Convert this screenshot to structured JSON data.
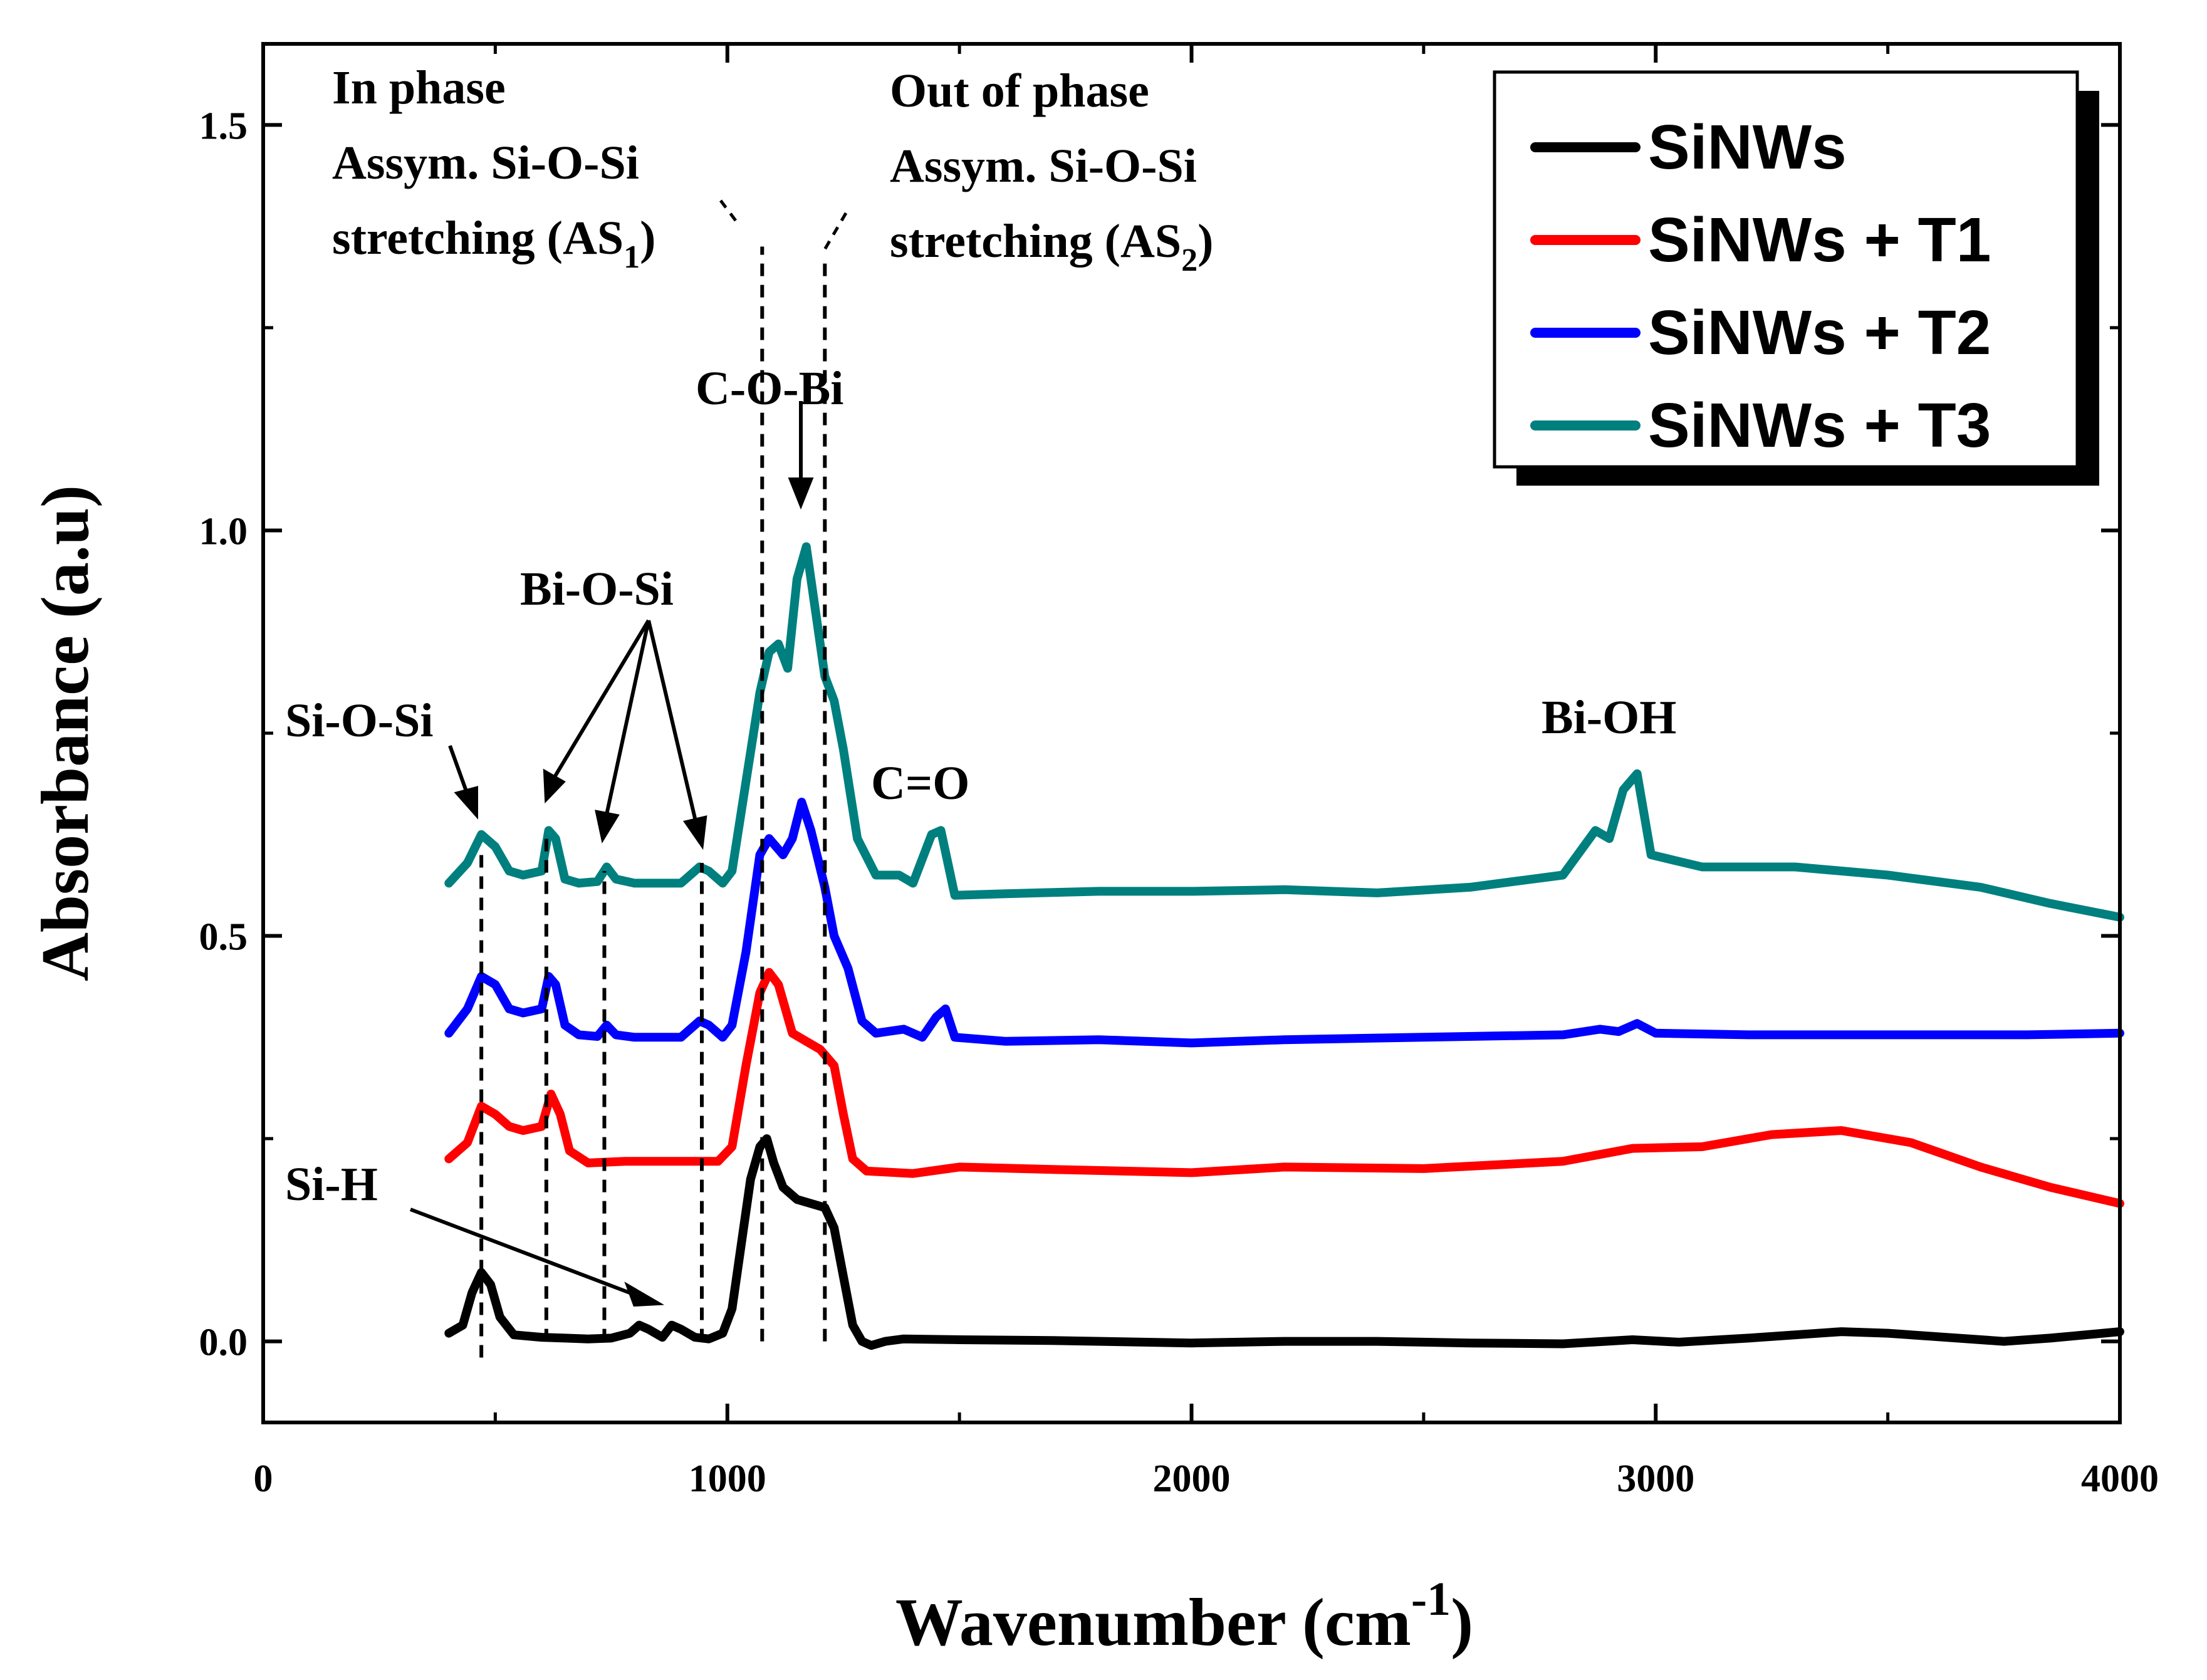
{
  "chart_data": {
    "type": "line",
    "xlabel": "Wavenumber (cm",
    "xlabel_sup": "-1",
    "xlabel_end": ")",
    "ylabel": "Absorbance (a.u)",
    "xlim": [
      0,
      4000
    ],
    "ylim": [
      -0.1,
      1.6
    ],
    "x_ticks": [
      0,
      1000,
      2000,
      3000,
      4000
    ],
    "x_tick_labels": [
      "0",
      "1000",
      "2000",
      "3000",
      "4000"
    ],
    "y_ticks": [
      0.0,
      0.5,
      1.0,
      1.5
    ],
    "y_tick_labels": [
      "0.0",
      "0.5",
      "1.0",
      "1.5"
    ],
    "legend_position": "top-right",
    "series": [
      {
        "name": "SiNWs",
        "color": "#000000",
        "points": [
          [
            400,
            0.01
          ],
          [
            430,
            0.02
          ],
          [
            450,
            0.06
          ],
          [
            470,
            0.085
          ],
          [
            490,
            0.07
          ],
          [
            510,
            0.03
          ],
          [
            540,
            0.008
          ],
          [
            600,
            0.005
          ],
          [
            650,
            0.004
          ],
          [
            700,
            0.003
          ],
          [
            750,
            0.004
          ],
          [
            790,
            0.01
          ],
          [
            810,
            0.02
          ],
          [
            830,
            0.015
          ],
          [
            860,
            0.005
          ],
          [
            880,
            0.02
          ],
          [
            900,
            0.015
          ],
          [
            930,
            0.005
          ],
          [
            960,
            0.003
          ],
          [
            990,
            0.01
          ],
          [
            1010,
            0.04
          ],
          [
            1030,
            0.12
          ],
          [
            1050,
            0.2
          ],
          [
            1070,
            0.24
          ],
          [
            1085,
            0.25
          ],
          [
            1100,
            0.22
          ],
          [
            1120,
            0.19
          ],
          [
            1150,
            0.175
          ],
          [
            1180,
            0.17
          ],
          [
            1210,
            0.165
          ],
          [
            1230,
            0.14
          ],
          [
            1250,
            0.08
          ],
          [
            1270,
            0.02
          ],
          [
            1290,
            0.0
          ],
          [
            1310,
            -0.005
          ],
          [
            1340,
            0.0
          ],
          [
            1380,
            0.003
          ],
          [
            1500,
            0.002
          ],
          [
            1700,
            0.001
          ],
          [
            2000,
            -0.002
          ],
          [
            2200,
            0.0
          ],
          [
            2400,
            0.0
          ],
          [
            2600,
            -0.002
          ],
          [
            2800,
            -0.003
          ],
          [
            2950,
            0.002
          ],
          [
            3050,
            -0.001
          ],
          [
            3200,
            0.004
          ],
          [
            3400,
            0.012
          ],
          [
            3500,
            0.01
          ],
          [
            3600,
            0.006
          ],
          [
            3750,
            0.0
          ],
          [
            3850,
            0.004
          ],
          [
            4000,
            0.012
          ]
        ]
      },
      {
        "name": "SiNWs + T1",
        "color": "#ff0000",
        "points": [
          [
            400,
            0.225
          ],
          [
            440,
            0.245
          ],
          [
            470,
            0.29
          ],
          [
            500,
            0.28
          ],
          [
            530,
            0.265
          ],
          [
            560,
            0.26
          ],
          [
            600,
            0.265
          ],
          [
            620,
            0.305
          ],
          [
            640,
            0.28
          ],
          [
            660,
            0.235
          ],
          [
            700,
            0.22
          ],
          [
            780,
            0.222
          ],
          [
            900,
            0.222
          ],
          [
            980,
            0.222
          ],
          [
            1010,
            0.24
          ],
          [
            1040,
            0.34
          ],
          [
            1070,
            0.43
          ],
          [
            1090,
            0.455
          ],
          [
            1110,
            0.44
          ],
          [
            1140,
            0.38
          ],
          [
            1170,
            0.37
          ],
          [
            1200,
            0.36
          ],
          [
            1230,
            0.34
          ],
          [
            1250,
            0.28
          ],
          [
            1270,
            0.225
          ],
          [
            1300,
            0.21
          ],
          [
            1400,
            0.207
          ],
          [
            1500,
            0.215
          ],
          [
            1700,
            0.212
          ],
          [
            2000,
            0.208
          ],
          [
            2200,
            0.215
          ],
          [
            2500,
            0.213
          ],
          [
            2800,
            0.222
          ],
          [
            2950,
            0.238
          ],
          [
            3100,
            0.24
          ],
          [
            3250,
            0.255
          ],
          [
            3400,
            0.26
          ],
          [
            3550,
            0.245
          ],
          [
            3700,
            0.215
          ],
          [
            3850,
            0.19
          ],
          [
            4000,
            0.17
          ]
        ]
      },
      {
        "name": "SiNWs + T2",
        "color": "#0000ff",
        "points": [
          [
            400,
            0.38
          ],
          [
            440,
            0.41
          ],
          [
            470,
            0.45
          ],
          [
            500,
            0.44
          ],
          [
            530,
            0.41
          ],
          [
            560,
            0.405
          ],
          [
            600,
            0.41
          ],
          [
            615,
            0.45
          ],
          [
            630,
            0.44
          ],
          [
            650,
            0.39
          ],
          [
            680,
            0.378
          ],
          [
            720,
            0.376
          ],
          [
            740,
            0.39
          ],
          [
            760,
            0.378
          ],
          [
            800,
            0.375
          ],
          [
            900,
            0.375
          ],
          [
            940,
            0.395
          ],
          [
            960,
            0.39
          ],
          [
            990,
            0.375
          ],
          [
            1010,
            0.39
          ],
          [
            1040,
            0.48
          ],
          [
            1070,
            0.6
          ],
          [
            1090,
            0.62
          ],
          [
            1120,
            0.6
          ],
          [
            1140,
            0.62
          ],
          [
            1160,
            0.665
          ],
          [
            1180,
            0.63
          ],
          [
            1210,
            0.56
          ],
          [
            1230,
            0.5
          ],
          [
            1260,
            0.46
          ],
          [
            1290,
            0.395
          ],
          [
            1320,
            0.38
          ],
          [
            1380,
            0.385
          ],
          [
            1420,
            0.375
          ],
          [
            1450,
            0.4
          ],
          [
            1470,
            0.41
          ],
          [
            1490,
            0.375
          ],
          [
            1600,
            0.37
          ],
          [
            1800,
            0.372
          ],
          [
            2000,
            0.368
          ],
          [
            2200,
            0.372
          ],
          [
            2500,
            0.375
          ],
          [
            2800,
            0.378
          ],
          [
            2880,
            0.385
          ],
          [
            2920,
            0.382
          ],
          [
            2960,
            0.392
          ],
          [
            3000,
            0.38
          ],
          [
            3200,
            0.378
          ],
          [
            3500,
            0.378
          ],
          [
            3800,
            0.378
          ],
          [
            4000,
            0.38
          ]
        ]
      },
      {
        "name": "SiNWs + T3",
        "color": "#007f7f",
        "points": [
          [
            400,
            0.565
          ],
          [
            440,
            0.59
          ],
          [
            470,
            0.625
          ],
          [
            500,
            0.61
          ],
          [
            530,
            0.58
          ],
          [
            560,
            0.575
          ],
          [
            600,
            0.58
          ],
          [
            615,
            0.63
          ],
          [
            630,
            0.62
          ],
          [
            650,
            0.57
          ],
          [
            680,
            0.565
          ],
          [
            720,
            0.567
          ],
          [
            740,
            0.585
          ],
          [
            760,
            0.57
          ],
          [
            800,
            0.565
          ],
          [
            900,
            0.565
          ],
          [
            940,
            0.585
          ],
          [
            960,
            0.58
          ],
          [
            990,
            0.565
          ],
          [
            1010,
            0.58
          ],
          [
            1040,
            0.69
          ],
          [
            1070,
            0.8
          ],
          [
            1090,
            0.85
          ],
          [
            1110,
            0.86
          ],
          [
            1130,
            0.83
          ],
          [
            1150,
            0.94
          ],
          [
            1170,
            0.98
          ],
          [
            1190,
            0.9
          ],
          [
            1210,
            0.82
          ],
          [
            1230,
            0.79
          ],
          [
            1250,
            0.73
          ],
          [
            1280,
            0.62
          ],
          [
            1320,
            0.575
          ],
          [
            1370,
            0.575
          ],
          [
            1400,
            0.565
          ],
          [
            1440,
            0.625
          ],
          [
            1460,
            0.63
          ],
          [
            1490,
            0.55
          ],
          [
            1600,
            0.552
          ],
          [
            1800,
            0.555
          ],
          [
            2000,
            0.555
          ],
          [
            2200,
            0.557
          ],
          [
            2400,
            0.553
          ],
          [
            2600,
            0.56
          ],
          [
            2800,
            0.575
          ],
          [
            2870,
            0.63
          ],
          [
            2900,
            0.62
          ],
          [
            2930,
            0.68
          ],
          [
            2960,
            0.7
          ],
          [
            2990,
            0.6
          ],
          [
            3100,
            0.585
          ],
          [
            3300,
            0.585
          ],
          [
            3500,
            0.575
          ],
          [
            3700,
            0.56
          ],
          [
            3850,
            0.54
          ],
          [
            4000,
            0.523
          ]
        ]
      }
    ],
    "annotations": {
      "in_phase_line1": "In phase",
      "in_phase_line2": "Assym. Si-O-Si",
      "in_phase_line3_a": "stretching (AS",
      "in_phase_line3_sub": "1",
      "in_phase_line3_b": ")",
      "out_phase_line1": "Out of phase",
      "out_phase_line2": "Assym. Si-O-Si",
      "out_phase_line3_a": "stretching (AS",
      "out_phase_line3_sub": "2",
      "out_phase_line3_b": ")",
      "c_o_bi": "C-O-Bi",
      "bi_o_si": "Bi-O-Si",
      "si_o_si": "Si-O-Si",
      "c_eq_o": "C=O",
      "bi_oh": "Bi-OH",
      "si_h": "Si-H"
    }
  }
}
